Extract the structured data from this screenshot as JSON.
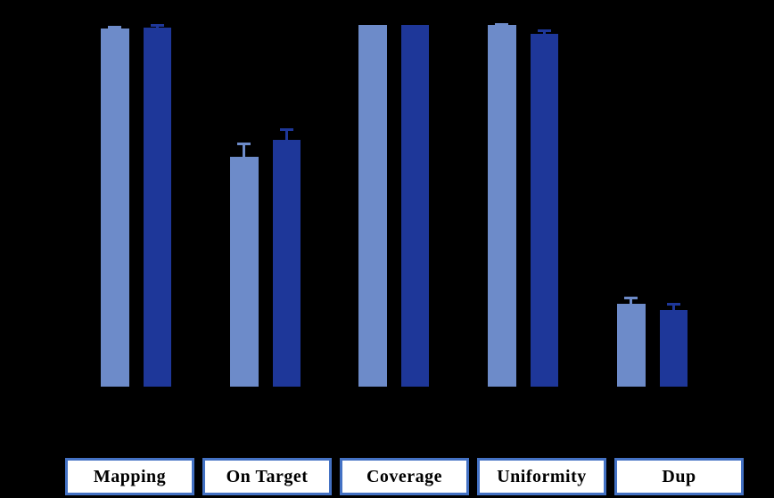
{
  "chart_data": {
    "type": "bar",
    "title": "",
    "categories": [
      "Mapping",
      "On Target",
      "Coverage",
      "Uniformity",
      "Dup"
    ],
    "series": [
      {
        "name": "light-blue-series",
        "color": "#6D8BC9",
        "values": [
          99.0,
          63.5,
          100.0,
          100.0,
          23.0
        ],
        "errors": [
          0.8,
          3.9,
          0.0,
          0.4,
          2.0
        ]
      },
      {
        "name": "dark-blue-series",
        "color": "#1E3799",
        "values": [
          99.3,
          68.2,
          100.0,
          97.5,
          21.2
        ],
        "errors": [
          1.0,
          3.2,
          0.0,
          1.2,
          2.0
        ]
      }
    ],
    "ylim": [
      0,
      100
    ],
    "xlabel": "",
    "ylabel": "",
    "axes_visible": false,
    "grid": false,
    "legend_position": "none",
    "error_bars": true,
    "background_color": "#000000",
    "category_box_fill": "#FFFFFF",
    "category_box_border": "#4472C4",
    "category_text_color": "#000000"
  }
}
